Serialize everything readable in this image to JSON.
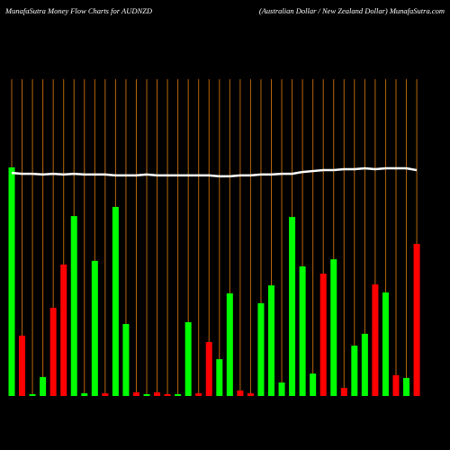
{
  "chart_data": {
    "type": "bar",
    "title": "MunafaSutra  Money Flow  Charts for AUDNZD",
    "subtitle": "(Australian  Dollar / New  Zealand Dollar) MunafaSutra.com",
    "categories": [
      null,
      null,
      null,
      null,
      null,
      null,
      null,
      null,
      null,
      null,
      null,
      null,
      null,
      null,
      null,
      null,
      null,
      null,
      null,
      null,
      null,
      null,
      null,
      null,
      null,
      null,
      null,
      null,
      null,
      null,
      null,
      null,
      null,
      null,
      null,
      null,
      null,
      null,
      null,
      null
    ],
    "series": [
      {
        "values": [
          100,
          26.4,
          0.8,
          8.3,
          38.6,
          57.5,
          78.7,
          1.2,
          59.1,
          1.2,
          82.7,
          31.5,
          1.6,
          0.8,
          1.6,
          0.8,
          0.8,
          32.3,
          1.2,
          23.6,
          16.1,
          44.9,
          2.4,
          1.2,
          40.6,
          48.4,
          5.9,
          78.3,
          56.7,
          9.8,
          53.5,
          59.8,
          3.5,
          22,
          27.2,
          48.8,
          45.3,
          9.1,
          7.9,
          66.5
        ],
        "colors": [
          "#00ff00",
          "#ff0000",
          "#00ff00",
          "#00ff00",
          "#ff0000",
          "#ff0000",
          "#00ff00",
          "#00ff00",
          "#00ff00",
          "#ff0000",
          "#00ff00",
          "#00ff00",
          "#ff0000",
          "#00ff00",
          "#ff0000",
          "#ff0000",
          "#00ff00",
          "#00ff00",
          "#ff0000",
          "#ff0000",
          "#00ff00",
          "#00ff00",
          "#ff0000",
          "#ff0000",
          "#00ff00",
          "#00ff00",
          "#00ff00",
          "#00ff00",
          "#00ff00",
          "#00ff00",
          "#ff0000",
          "#00ff00",
          "#ff0000",
          "#00ff00",
          "#00ff00",
          "#ff0000",
          "#00ff00",
          "#ff0000",
          "#00ff00",
          "#ff0000"
        ]
      },
      {
        "type": "line",
        "color": "#ffffff",
        "values": [
          97.6,
          97.2,
          97.2,
          96.9,
          97.2,
          96.9,
          97.2,
          96.9,
          96.9,
          96.9,
          96.5,
          96.5,
          96.5,
          96.9,
          96.5,
          96.5,
          96.5,
          96.5,
          96.5,
          96.5,
          96.1,
          96.1,
          96.5,
          96.5,
          96.9,
          96.9,
          97.2,
          97.2,
          98.0,
          98.4,
          98.8,
          98.8,
          99.2,
          99.2,
          99.6,
          99.2,
          99.6,
          99.6,
          99.6,
          98.8
        ]
      }
    ],
    "gridline_color": "#b8660b"
  }
}
